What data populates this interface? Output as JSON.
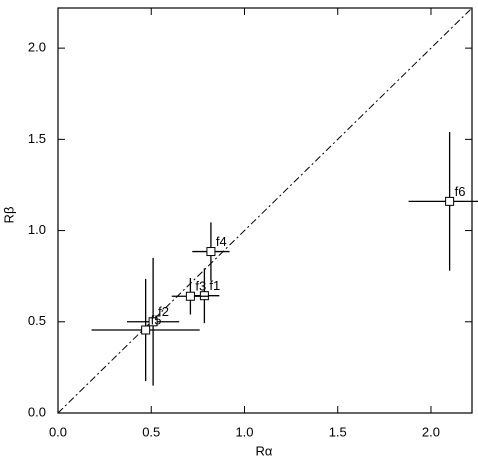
{
  "chart_data": {
    "type": "scatter",
    "xlabel": "Rα",
    "ylabel": "Rβ",
    "xlim": [
      0,
      2.22
    ],
    "ylim": [
      0,
      2.22
    ],
    "xticks": [
      {
        "value": 0,
        "label": "0.0"
      },
      {
        "value": 0.5,
        "label": "0.5"
      },
      {
        "value": 1,
        "label": "1.0"
      },
      {
        "value": 1.5,
        "label": "1.5"
      },
      {
        "value": 2,
        "label": "2.0"
      }
    ],
    "yticks": [
      {
        "value": 0,
        "label": "0.0"
      },
      {
        "value": 0.5,
        "label": "0.5"
      },
      {
        "value": 1,
        "label": "1.0"
      },
      {
        "value": 1.5,
        "label": "1.5"
      },
      {
        "value": 2,
        "label": "2.0"
      }
    ],
    "color": "#000000",
    "labels": [
      "f1",
      "f2",
      "f3",
      "f4",
      "f5",
      "f6"
    ],
    "x": [
      0.785,
      0.51,
      0.71,
      0.82,
      0.47,
      2.1
    ],
    "values": [
      0.643,
      0.5,
      0.64,
      0.885,
      0.455,
      1.16
    ],
    "xerr": [
      0.08,
      0.14,
      0.1,
      0.1,
      0.29,
      0.22
    ],
    "yerr": [
      0.15,
      0.35,
      0.1,
      0.16,
      0.28,
      0.38
    ]
  }
}
